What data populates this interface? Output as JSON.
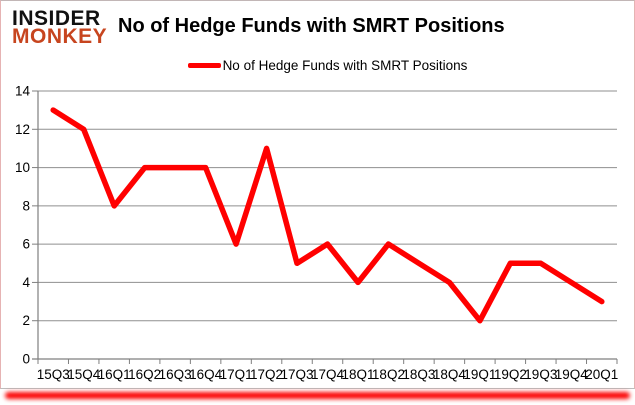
{
  "brand": {
    "line1": "INSIDER",
    "line2": "MONKEY",
    "color": "#C7451F"
  },
  "header": {
    "title": "No of Hedge Funds with SMRT Positions"
  },
  "legend": {
    "label": "No of Hedge Funds with SMRT Positions",
    "swatch_color": "#FF0000"
  },
  "colors": {
    "accent_red": "#FF0000",
    "gridline": "#8F8F8F",
    "axis": "#7F7F7F",
    "label": "#000000",
    "glow_bar": "#FB0505"
  },
  "chart_data": {
    "type": "line",
    "title": "No of Hedge Funds with SMRT Positions",
    "categories": [
      "15Q3",
      "15Q4",
      "16Q1",
      "16Q2",
      "16Q3",
      "16Q4",
      "17Q1",
      "17Q2",
      "17Q3",
      "17Q4",
      "18Q1",
      "18Q2",
      "18Q3",
      "18Q4",
      "19Q1",
      "19Q2",
      "19Q3",
      "19Q4",
      "20Q1"
    ],
    "series": [
      {
        "name": "No of Hedge Funds with SMRT Positions",
        "color": "#FF0000",
        "values": [
          13,
          12,
          8,
          10,
          10,
          10,
          6,
          11,
          5,
          6,
          4,
          6,
          5,
          4,
          2,
          5,
          5,
          4,
          3
        ]
      }
    ],
    "xlabel": "",
    "ylabel": "",
    "ylim": [
      0,
      14
    ],
    "ytick_step": 2,
    "grid": true,
    "legend_position": "top-center"
  }
}
